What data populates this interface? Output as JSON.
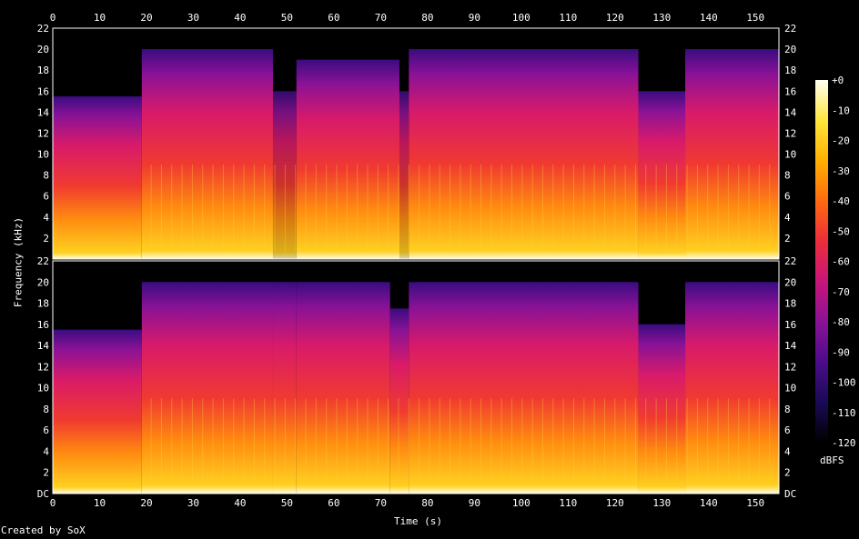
{
  "chart_data": {
    "type": "heatmap",
    "title": "",
    "xlabel": "Time (s)",
    "ylabel": "Frequency (kHz)",
    "x_ticks": [
      "0",
      "10",
      "20",
      "30",
      "40",
      "50",
      "60",
      "70",
      "80",
      "90",
      "100",
      "110",
      "120",
      "130",
      "140",
      "150"
    ],
    "x_range": [
      0,
      155
    ],
    "channels": [
      {
        "name": "",
        "y_ticks": [
          "22",
          "20",
          "18",
          "16",
          "14",
          "12",
          "10",
          "8",
          "6",
          "4",
          "2"
        ],
        "bandwidth_khz": [
          {
            "t": [
              0,
              19
            ],
            "max_khz": 15.5
          },
          {
            "t": [
              19,
              47
            ],
            "max_khz": 20
          },
          {
            "t": [
              47,
              52
            ],
            "max_khz": 16
          },
          {
            "t": [
              52,
              74
            ],
            "max_khz": 19
          },
          {
            "t": [
              74,
              76
            ],
            "max_khz": 16
          },
          {
            "t": [
              76,
              125
            ],
            "max_khz": 20
          },
          {
            "t": [
              125,
              135
            ],
            "max_khz": 16
          },
          {
            "t": [
              135,
              155
            ],
            "max_khz": 20
          }
        ]
      },
      {
        "name": "",
        "y_ticks": [
          "22",
          "20",
          "18",
          "16",
          "14",
          "12",
          "10",
          "8",
          "6",
          "4",
          "2",
          "DC"
        ],
        "bandwidth_khz": [
          {
            "t": [
              0,
              19
            ],
            "max_khz": 15.5
          },
          {
            "t": [
              19,
              47
            ],
            "max_khz": 20
          },
          {
            "t": [
              47,
              52
            ],
            "max_khz": 20
          },
          {
            "t": [
              52,
              72
            ],
            "max_khz": 20
          },
          {
            "t": [
              72,
              76
            ],
            "max_khz": 17.5
          },
          {
            "t": [
              76,
              125
            ],
            "max_khz": 20
          },
          {
            "t": [
              125,
              135
            ],
            "max_khz": 16
          },
          {
            "t": [
              135,
              155
            ],
            "max_khz": 20
          }
        ]
      }
    ],
    "colorbar": {
      "unit": "dBFS",
      "ticks": [
        "+0",
        "-10",
        "-20",
        "-30",
        "-40",
        "-50",
        "-60",
        "-70",
        "-80",
        "-90",
        "-100",
        "-110",
        "-120"
      ],
      "range": [
        -120,
        0
      ]
    }
  },
  "footer": {
    "credit": "Created by SoX"
  },
  "colors": {
    "background": "#000000",
    "axis": "#ffffff",
    "palette": [
      "#000000",
      "#1a0a55",
      "#4b0c8a",
      "#8a1296",
      "#c8157a",
      "#ec2d3a",
      "#ff6a10",
      "#ffb000",
      "#ffe63c",
      "#fffff0"
    ]
  }
}
